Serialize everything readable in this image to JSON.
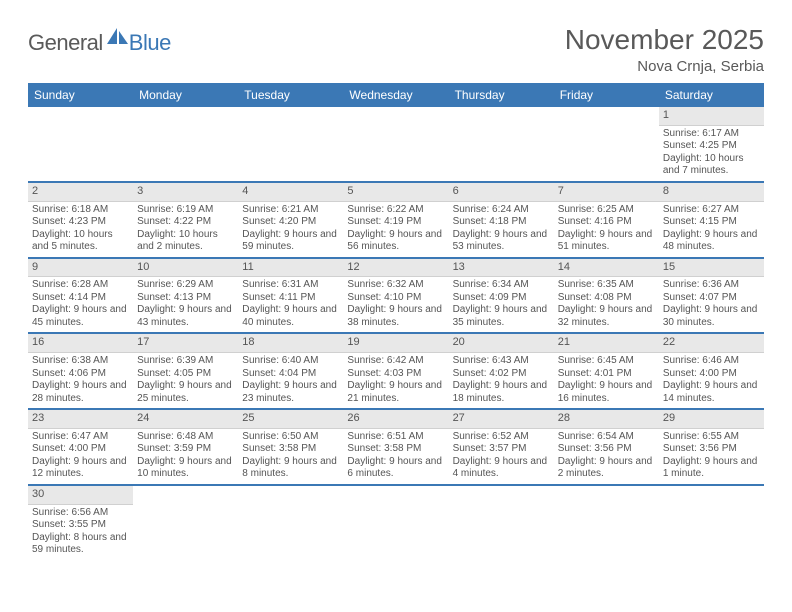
{
  "brand": {
    "general": "General",
    "blue": "Blue",
    "icon_color": "#3b78b5"
  },
  "title": "November 2025",
  "location": "Nova Crnja, Serbia",
  "colors": {
    "header_bg": "#3b78b5",
    "header_text": "#ffffff",
    "daynum_bg": "#e8e8e8",
    "text": "#555555",
    "row_accent": "#3b78b5"
  },
  "weekdays": [
    "Sunday",
    "Monday",
    "Tuesday",
    "Wednesday",
    "Thursday",
    "Friday",
    "Saturday"
  ],
  "weeks": [
    [
      {
        "n": "",
        "sunrise": "",
        "sunset": "",
        "daylight": ""
      },
      {
        "n": "",
        "sunrise": "",
        "sunset": "",
        "daylight": ""
      },
      {
        "n": "",
        "sunrise": "",
        "sunset": "",
        "daylight": ""
      },
      {
        "n": "",
        "sunrise": "",
        "sunset": "",
        "daylight": ""
      },
      {
        "n": "",
        "sunrise": "",
        "sunset": "",
        "daylight": ""
      },
      {
        "n": "",
        "sunrise": "",
        "sunset": "",
        "daylight": ""
      },
      {
        "n": "1",
        "sunrise": "Sunrise: 6:17 AM",
        "sunset": "Sunset: 4:25 PM",
        "daylight": "Daylight: 10 hours and 7 minutes."
      }
    ],
    [
      {
        "n": "2",
        "sunrise": "Sunrise: 6:18 AM",
        "sunset": "Sunset: 4:23 PM",
        "daylight": "Daylight: 10 hours and 5 minutes."
      },
      {
        "n": "3",
        "sunrise": "Sunrise: 6:19 AM",
        "sunset": "Sunset: 4:22 PM",
        "daylight": "Daylight: 10 hours and 2 minutes."
      },
      {
        "n": "4",
        "sunrise": "Sunrise: 6:21 AM",
        "sunset": "Sunset: 4:20 PM",
        "daylight": "Daylight: 9 hours and 59 minutes."
      },
      {
        "n": "5",
        "sunrise": "Sunrise: 6:22 AM",
        "sunset": "Sunset: 4:19 PM",
        "daylight": "Daylight: 9 hours and 56 minutes."
      },
      {
        "n": "6",
        "sunrise": "Sunrise: 6:24 AM",
        "sunset": "Sunset: 4:18 PM",
        "daylight": "Daylight: 9 hours and 53 minutes."
      },
      {
        "n": "7",
        "sunrise": "Sunrise: 6:25 AM",
        "sunset": "Sunset: 4:16 PM",
        "daylight": "Daylight: 9 hours and 51 minutes."
      },
      {
        "n": "8",
        "sunrise": "Sunrise: 6:27 AM",
        "sunset": "Sunset: 4:15 PM",
        "daylight": "Daylight: 9 hours and 48 minutes."
      }
    ],
    [
      {
        "n": "9",
        "sunrise": "Sunrise: 6:28 AM",
        "sunset": "Sunset: 4:14 PM",
        "daylight": "Daylight: 9 hours and 45 minutes."
      },
      {
        "n": "10",
        "sunrise": "Sunrise: 6:29 AM",
        "sunset": "Sunset: 4:13 PM",
        "daylight": "Daylight: 9 hours and 43 minutes."
      },
      {
        "n": "11",
        "sunrise": "Sunrise: 6:31 AM",
        "sunset": "Sunset: 4:11 PM",
        "daylight": "Daylight: 9 hours and 40 minutes."
      },
      {
        "n": "12",
        "sunrise": "Sunrise: 6:32 AM",
        "sunset": "Sunset: 4:10 PM",
        "daylight": "Daylight: 9 hours and 38 minutes."
      },
      {
        "n": "13",
        "sunrise": "Sunrise: 6:34 AM",
        "sunset": "Sunset: 4:09 PM",
        "daylight": "Daylight: 9 hours and 35 minutes."
      },
      {
        "n": "14",
        "sunrise": "Sunrise: 6:35 AM",
        "sunset": "Sunset: 4:08 PM",
        "daylight": "Daylight: 9 hours and 32 minutes."
      },
      {
        "n": "15",
        "sunrise": "Sunrise: 6:36 AM",
        "sunset": "Sunset: 4:07 PM",
        "daylight": "Daylight: 9 hours and 30 minutes."
      }
    ],
    [
      {
        "n": "16",
        "sunrise": "Sunrise: 6:38 AM",
        "sunset": "Sunset: 4:06 PM",
        "daylight": "Daylight: 9 hours and 28 minutes."
      },
      {
        "n": "17",
        "sunrise": "Sunrise: 6:39 AM",
        "sunset": "Sunset: 4:05 PM",
        "daylight": "Daylight: 9 hours and 25 minutes."
      },
      {
        "n": "18",
        "sunrise": "Sunrise: 6:40 AM",
        "sunset": "Sunset: 4:04 PM",
        "daylight": "Daylight: 9 hours and 23 minutes."
      },
      {
        "n": "19",
        "sunrise": "Sunrise: 6:42 AM",
        "sunset": "Sunset: 4:03 PM",
        "daylight": "Daylight: 9 hours and 21 minutes."
      },
      {
        "n": "20",
        "sunrise": "Sunrise: 6:43 AM",
        "sunset": "Sunset: 4:02 PM",
        "daylight": "Daylight: 9 hours and 18 minutes."
      },
      {
        "n": "21",
        "sunrise": "Sunrise: 6:45 AM",
        "sunset": "Sunset: 4:01 PM",
        "daylight": "Daylight: 9 hours and 16 minutes."
      },
      {
        "n": "22",
        "sunrise": "Sunrise: 6:46 AM",
        "sunset": "Sunset: 4:00 PM",
        "daylight": "Daylight: 9 hours and 14 minutes."
      }
    ],
    [
      {
        "n": "23",
        "sunrise": "Sunrise: 6:47 AM",
        "sunset": "Sunset: 4:00 PM",
        "daylight": "Daylight: 9 hours and 12 minutes."
      },
      {
        "n": "24",
        "sunrise": "Sunrise: 6:48 AM",
        "sunset": "Sunset: 3:59 PM",
        "daylight": "Daylight: 9 hours and 10 minutes."
      },
      {
        "n": "25",
        "sunrise": "Sunrise: 6:50 AM",
        "sunset": "Sunset: 3:58 PM",
        "daylight": "Daylight: 9 hours and 8 minutes."
      },
      {
        "n": "26",
        "sunrise": "Sunrise: 6:51 AM",
        "sunset": "Sunset: 3:58 PM",
        "daylight": "Daylight: 9 hours and 6 minutes."
      },
      {
        "n": "27",
        "sunrise": "Sunrise: 6:52 AM",
        "sunset": "Sunset: 3:57 PM",
        "daylight": "Daylight: 9 hours and 4 minutes."
      },
      {
        "n": "28",
        "sunrise": "Sunrise: 6:54 AM",
        "sunset": "Sunset: 3:56 PM",
        "daylight": "Daylight: 9 hours and 2 minutes."
      },
      {
        "n": "29",
        "sunrise": "Sunrise: 6:55 AM",
        "sunset": "Sunset: 3:56 PM",
        "daylight": "Daylight: 9 hours and 1 minute."
      }
    ],
    [
      {
        "n": "30",
        "sunrise": "Sunrise: 6:56 AM",
        "sunset": "Sunset: 3:55 PM",
        "daylight": "Daylight: 8 hours and 59 minutes."
      },
      {
        "n": "",
        "sunrise": "",
        "sunset": "",
        "daylight": ""
      },
      {
        "n": "",
        "sunrise": "",
        "sunset": "",
        "daylight": ""
      },
      {
        "n": "",
        "sunrise": "",
        "sunset": "",
        "daylight": ""
      },
      {
        "n": "",
        "sunrise": "",
        "sunset": "",
        "daylight": ""
      },
      {
        "n": "",
        "sunrise": "",
        "sunset": "",
        "daylight": ""
      },
      {
        "n": "",
        "sunrise": "",
        "sunset": "",
        "daylight": ""
      }
    ]
  ]
}
